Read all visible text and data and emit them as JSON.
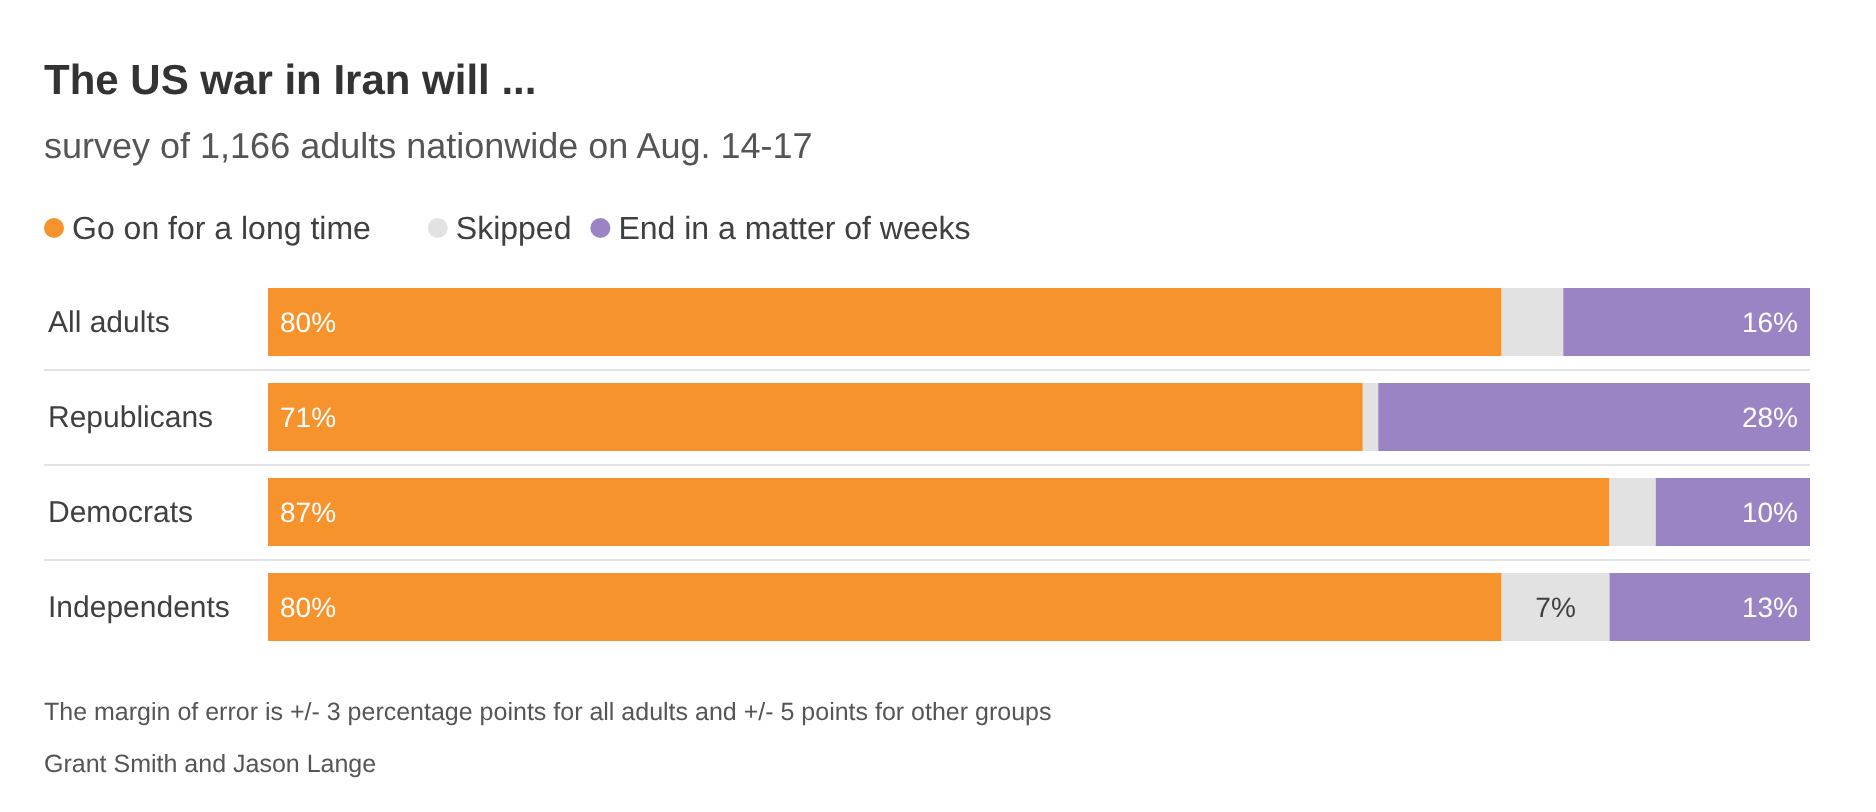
{
  "chart_data": {
    "type": "bar",
    "orientation": "horizontal",
    "stacked": true,
    "title": "The US war in Iran will ...",
    "subtitle": "survey of 1,166 adults nationwide on Aug. 14-17",
    "categories": [
      "All adults",
      "Republicans",
      "Democrats",
      "Independents"
    ],
    "xlim": [
      0,
      100
    ],
    "tick_labels": "y",
    "legend": "top left",
    "series": [
      {
        "name": "Go on for a long time",
        "color": "#f7932c",
        "values": [
          80,
          71,
          87,
          80
        ],
        "value_labels": [
          "80%",
          "71%",
          "87%",
          "80%"
        ]
      },
      {
        "name": "Skipped",
        "color": "#e2e2e2",
        "values": [
          4,
          1,
          3,
          7
        ],
        "value_labels": [
          null,
          null,
          null,
          "7%"
        ]
      },
      {
        "name": "End in a matter of weeks",
        "color": "#9b84c4",
        "values": [
          16,
          28,
          10,
          13
        ],
        "value_labels": [
          "16%",
          "28%",
          "10%",
          "13%"
        ]
      }
    ],
    "annotations": [
      "The margin of error is +/- 3 percentage points for all adults and +/- 5 points for other groups",
      "Grant Smith and Jason Lange"
    ]
  }
}
